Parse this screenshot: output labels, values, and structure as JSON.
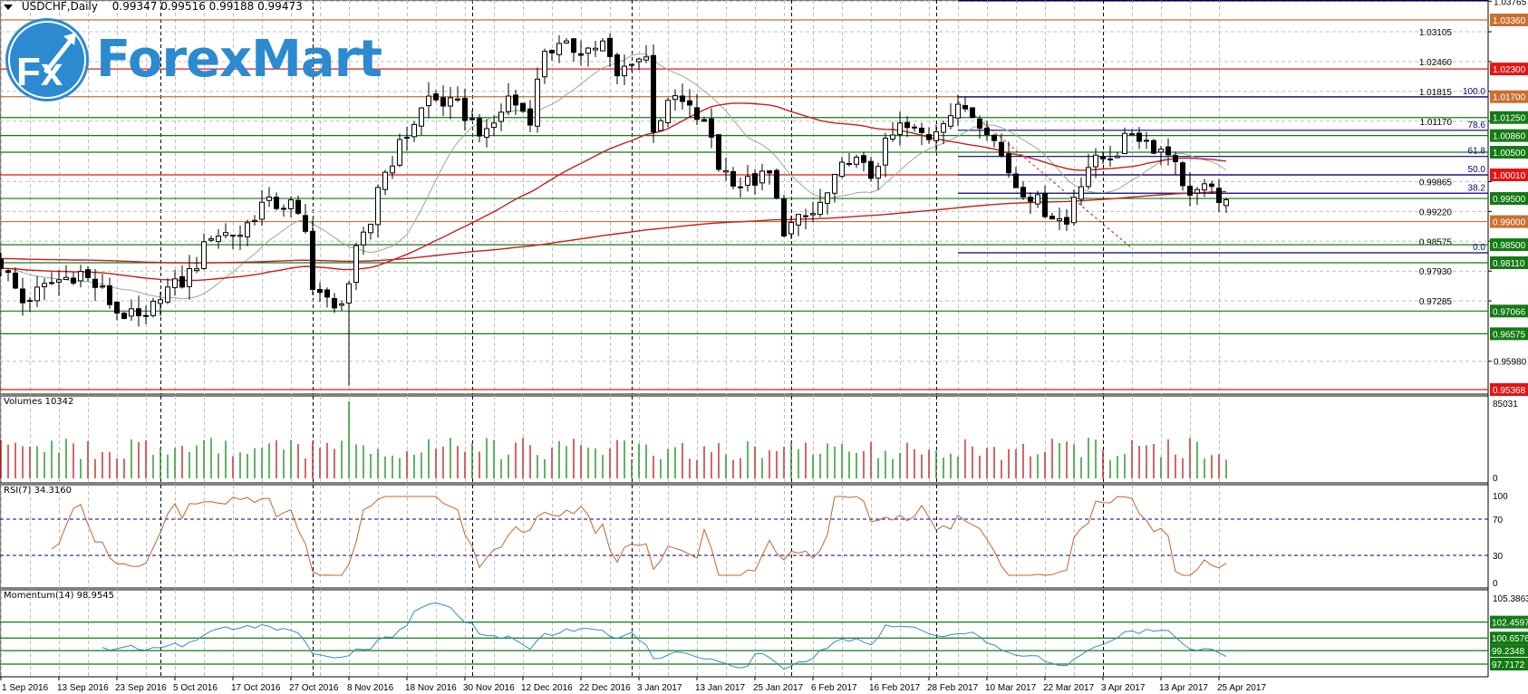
{
  "header": {
    "symbol_timeframe": "USDCHF,Daily",
    "ohlc": "0.99347 0.99516 0.99188 0.99473"
  },
  "logo": {
    "fx": "Fx",
    "name": "ForexMart",
    "color": "#2b8ad0"
  },
  "indicators": {
    "volumes": "Volumes 10342",
    "rsi": "RSI(7) 34.3160",
    "momentum": "Momentum(14) 98.9545"
  },
  "chart_data": {
    "type": "candlestick",
    "symbol": "USDCHF",
    "timeframe": "Daily",
    "last_bar": {
      "open": 0.99347,
      "high": 0.99516,
      "low": 0.99188,
      "close": 0.99473
    },
    "bar_count": 170,
    "close_keypoints": [
      [
        0,
        0.981
      ],
      [
        3,
        0.9726
      ],
      [
        7,
        0.9768
      ],
      [
        11,
        0.9789
      ],
      [
        14,
        0.9747
      ],
      [
        16,
        0.9705
      ],
      [
        20,
        0.9684
      ],
      [
        22,
        0.9747
      ],
      [
        25,
        0.9768
      ],
      [
        27,
        0.981
      ],
      [
        29,
        0.9874
      ],
      [
        33,
        0.9874
      ],
      [
        36,
        0.9937
      ],
      [
        40,
        0.9937
      ],
      [
        42,
        0.9874
      ],
      [
        43,
        0.9768
      ],
      [
        46,
        0.9705
      ],
      [
        48,
        0.9768
      ],
      [
        49,
        0.9831
      ],
      [
        51,
        0.9895
      ],
      [
        52,
        0.9979
      ],
      [
        55,
        1.0063
      ],
      [
        59,
        1.0168
      ],
      [
        63,
        1.0147
      ],
      [
        67,
        1.0084
      ],
      [
        70,
        1.0168
      ],
      [
        73,
        1.0126
      ],
      [
        75,
        1.0274
      ],
      [
        77,
        1.0274
      ],
      [
        81,
        1.0274
      ],
      [
        83,
        1.0284
      ],
      [
        85,
        1.0211
      ],
      [
        87,
        1.0253
      ],
      [
        89,
        1.0253
      ],
      [
        90,
        1.0105
      ],
      [
        93,
        1.0168
      ],
      [
        96,
        1.0126
      ],
      [
        98,
        1.0084
      ],
      [
        99,
        1.0021
      ],
      [
        102,
        0.9979
      ],
      [
        106,
        1.0
      ],
      [
        108,
        0.9884
      ],
      [
        112,
        0.9916
      ],
      [
        114,
        0.9958
      ],
      [
        117,
        1.0042
      ],
      [
        120,
        1.0
      ],
      [
        122,
        1.0063
      ],
      [
        124,
        1.0105
      ],
      [
        128,
        1.0084
      ],
      [
        130,
        1.0126
      ],
      [
        133,
        1.0147
      ],
      [
        136,
        1.0105
      ],
      [
        138,
        1.0042
      ],
      [
        140,
        0.9979
      ],
      [
        142,
        0.9958
      ],
      [
        144,
        0.9926
      ],
      [
        147,
        0.9895
      ],
      [
        148,
        0.9958
      ],
      [
        150,
        1.0021
      ],
      [
        154,
        1.0053
      ],
      [
        156,
        1.0095
      ],
      [
        159,
        1.0063
      ],
      [
        162,
        1.0042
      ],
      [
        163,
        0.9968
      ],
      [
        166,
        0.9968
      ],
      [
        169,
        0.9947
      ]
    ],
    "price_range": [
      0.95335,
      1.03765
    ],
    "price_ticks": [
      "1.03765",
      "1.03105",
      "1.02460",
      "1.01815",
      "1.01170",
      "0.99865",
      "0.99220",
      "0.98575",
      "0.97930",
      "0.97285",
      "0.95980"
    ],
    "levels": [
      {
        "price": 1.0336,
        "label": "1.03360",
        "color": "#c8702f"
      },
      {
        "price": 1.023,
        "label": "1.02300",
        "color": "#e31414"
      },
      {
        "price": 1.017,
        "label": "1.01700",
        "color": "#c8702f"
      },
      {
        "price": 1.0125,
        "label": "1.01250",
        "color": "#137a13"
      },
      {
        "price": 1.0086,
        "label": "1.00860",
        "color": "#137a13"
      },
      {
        "price": 1.005,
        "label": "1.00500",
        "color": "#137a13"
      },
      {
        "price": 1.0001,
        "label": "1.00010",
        "color": "#e31414"
      },
      {
        "price": 0.995,
        "label": "0.99500",
        "color": "#137a13"
      },
      {
        "price": 0.99,
        "label": "0.99000",
        "color": "#c8702f"
      },
      {
        "price": 0.985,
        "label": "0.98500",
        "color": "#137a13"
      },
      {
        "price": 0.9811,
        "label": "0.98110",
        "color": "#137a13"
      },
      {
        "price": 0.97066,
        "label": "0.97066",
        "color": "#137a13"
      },
      {
        "price": 0.96575,
        "label": "0.96575",
        "color": "#137a13"
      },
      {
        "price": 0.95368,
        "label": "0.95368",
        "color": "#e31414"
      }
    ],
    "fibonacci": {
      "start_bar": 132,
      "high": 1.01695,
      "low": 0.98326,
      "color": "#000080",
      "levels": [
        {
          "ratio": 1.0,
          "label": "100.0"
        },
        {
          "ratio": 0.786,
          "label": "78.6"
        },
        {
          "ratio": 0.618,
          "label": "61.8"
        },
        {
          "ratio": 0.5,
          "label": "50.0"
        },
        {
          "ratio": 0.382,
          "label": "38.2"
        },
        {
          "ratio": 0.0,
          "label": "0.0"
        }
      ]
    },
    "trendline": {
      "from": [
        132,
        1.016
      ],
      "to": [
        156,
        0.9842
      ],
      "color": "#c02020"
    },
    "moving_averages": [
      {
        "period": 14,
        "color": "#8fb08f"
      },
      {
        "period": 50,
        "color": "#c81e1e"
      },
      {
        "period": 200,
        "color": "#c81e1e"
      }
    ],
    "volume": {
      "max_label": "85031",
      "zero_label": "0",
      "max": 85031,
      "up_color": "#2a9a2a",
      "down_color": "#c83232"
    },
    "rsi": {
      "period": 7,
      "levels": [
        70,
        30
      ],
      "ticks": [
        "100",
        "70",
        "30",
        "0"
      ],
      "color": "#c8642a"
    },
    "momentum": {
      "period": 14,
      "top_label": "105.3863",
      "range": [
        96.4,
        105.3863
      ],
      "color": "#2e8bcf",
      "levels": [
        {
          "value": 102.4597,
          "label": "102.4597"
        },
        {
          "value": 100.6576,
          "label": "100.6576"
        },
        {
          "value": 99.2348,
          "label": "99.2348"
        },
        {
          "value": 97.7172,
          "label": "97.7172"
        }
      ]
    },
    "date_labels": [
      "1 Sep 2016",
      "13 Sep 2016",
      "23 Sep 2016",
      "5 Oct 2016",
      "17 Oct 2016",
      "27 Oct 2016",
      "8 Nov 2016",
      "18 Nov 2016",
      "30 Nov 2016",
      "12 Dec 2016",
      "22 Dec 2016",
      "3 Jan 2017",
      "13 Jan 2017",
      "25 Jan 2017",
      "6 Feb 2017",
      "16 Feb 2017",
      "28 Feb 2017",
      "10 Mar 2017",
      "22 Mar 2017",
      "3 Apr 2017",
      "13 Apr 2017",
      "25 Apr 2017"
    ],
    "date_label_every_bars": 8
  }
}
